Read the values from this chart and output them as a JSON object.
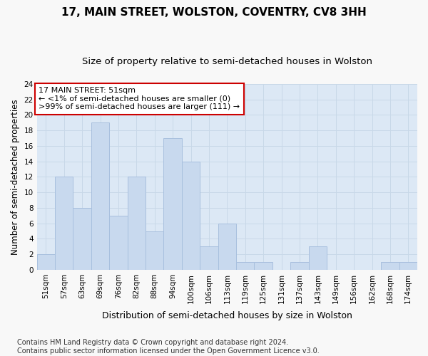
{
  "title": "17, MAIN STREET, WOLSTON, COVENTRY, CV8 3HH",
  "subtitle": "Size of property relative to semi-detached houses in Wolston",
  "xlabel": "Distribution of semi-detached houses by size in Wolston",
  "ylabel": "Number of semi-detached properties",
  "categories": [
    "51sqm",
    "57sqm",
    "63sqm",
    "69sqm",
    "76sqm",
    "82sqm",
    "88sqm",
    "94sqm",
    "100sqm",
    "106sqm",
    "113sqm",
    "119sqm",
    "125sqm",
    "131sqm",
    "137sqm",
    "143sqm",
    "149sqm",
    "156sqm",
    "162sqm",
    "168sqm",
    "174sqm"
  ],
  "values": [
    2,
    12,
    8,
    19,
    7,
    12,
    5,
    17,
    14,
    3,
    6,
    1,
    1,
    0,
    1,
    3,
    0,
    0,
    0,
    1,
    1
  ],
  "bar_color": "#c8d9ee",
  "bar_edge_color": "#a8c0de",
  "annotation_text": "17 MAIN STREET: 51sqm\n← <1% of semi-detached houses are smaller (0)\n>99% of semi-detached houses are larger (111) →",
  "annotation_box_color": "#ffffff",
  "annotation_box_edge": "#cc0000",
  "ylim": [
    0,
    24
  ],
  "yticks": [
    0,
    2,
    4,
    6,
    8,
    10,
    12,
    14,
    16,
    18,
    20,
    22,
    24
  ],
  "grid_color": "#c8d8e8",
  "background_color": "#dce8f5",
  "fig_background": "#f8f8f8",
  "footer_line1": "Contains HM Land Registry data © Crown copyright and database right 2024.",
  "footer_line2": "Contains public sector information licensed under the Open Government Licence v3.0.",
  "title_fontsize": 11,
  "subtitle_fontsize": 9.5,
  "xlabel_fontsize": 9,
  "ylabel_fontsize": 8.5,
  "tick_fontsize": 7.5,
  "annotation_fontsize": 8,
  "footer_fontsize": 7
}
